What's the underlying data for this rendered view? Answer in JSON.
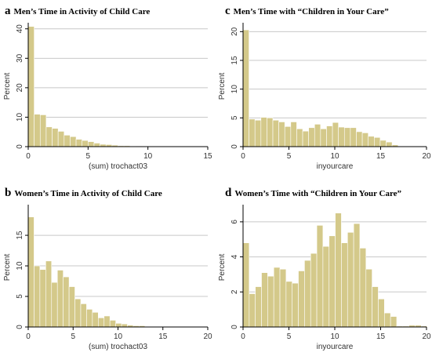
{
  "colors": {
    "bar_fill": "#d4c98a",
    "bar_stroke": "#ffffff",
    "grid": "#c8c8c8",
    "axis": "#000000",
    "text": "#333333"
  },
  "chart_data": [
    {
      "type": "bar",
      "panel_letter": "a",
      "title": "Men’s Time in Activity of Child Care",
      "xlabel": "(sum) trochact03",
      "ylabel": "Percent",
      "bin_width": 0.5,
      "xlim": [
        0,
        15
      ],
      "ylim": [
        0,
        41
      ],
      "xticks": [
        0,
        5,
        10,
        15
      ],
      "yticks": [
        0,
        10,
        20,
        30,
        40
      ],
      "grid": true,
      "bin_starts": [
        0,
        0.5,
        1,
        1.5,
        2,
        2.5,
        3,
        3.5,
        4,
        4.5,
        5,
        5.5,
        6,
        6.5,
        7,
        7.5,
        8,
        8.5,
        9,
        9.5,
        10,
        10.5,
        11,
        11.5
      ],
      "values": [
        40.8,
        11,
        10.8,
        6.7,
        6.2,
        5.2,
        3.9,
        3.4,
        2.5,
        2.1,
        1.7,
        1.2,
        0.8,
        0.7,
        0.5,
        0.3,
        0.3,
        0.2,
        0.15,
        0.1,
        0.1,
        0.1,
        0.1,
        0.1
      ]
    },
    {
      "type": "bar",
      "panel_letter": "c",
      "title": "Men’s Time with “Children in Your Care”",
      "xlabel": "inyourcare",
      "ylabel": "Percent",
      "bin_width": 0.65,
      "xlim": [
        0,
        20
      ],
      "ylim": [
        0,
        21
      ],
      "xticks": [
        0,
        5,
        10,
        15,
        20
      ],
      "yticks": [
        0,
        5,
        10,
        15,
        20
      ],
      "grid": true,
      "bin_starts": [
        0,
        0.65,
        1.3,
        1.95,
        2.6,
        3.25,
        3.9,
        4.55,
        5.2,
        5.85,
        6.5,
        7.15,
        7.8,
        8.45,
        9.1,
        9.75,
        10.4,
        11.05,
        11.7,
        12.35,
        13,
        13.65,
        14.3,
        14.95,
        15.6,
        16.25,
        16.9,
        17.55
      ],
      "values": [
        20.3,
        4.8,
        4.6,
        5.1,
        5,
        4.6,
        4.3,
        3.5,
        4.3,
        3.1,
        2.7,
        3.3,
        3.9,
        3.1,
        3.6,
        4.2,
        3.4,
        3.3,
        3.3,
        2.6,
        2.4,
        1.8,
        1.6,
        1.1,
        0.8,
        0.3,
        0.1,
        0.05
      ]
    },
    {
      "type": "bar",
      "panel_letter": "b",
      "title": "Women’s Time in Activity of Child Care",
      "xlabel": "(sum) trochact03",
      "ylabel": "Percent",
      "bin_width": 0.65,
      "xlim": [
        0,
        20
      ],
      "ylim": [
        0,
        19.5
      ],
      "xticks": [
        0,
        5,
        10,
        15,
        20
      ],
      "yticks": [
        0,
        5,
        10,
        15
      ],
      "grid": true,
      "bin_starts": [
        0,
        0.65,
        1.3,
        1.95,
        2.6,
        3.25,
        3.9,
        4.55,
        5.2,
        5.85,
        6.5,
        7.15,
        7.8,
        8.45,
        9.1,
        9.75,
        10.4,
        11.05,
        11.7,
        12.35,
        13,
        13.65
      ],
      "values": [
        18,
        10,
        9.4,
        10.8,
        7.3,
        9.3,
        8.2,
        6.6,
        4.6,
        3.8,
        2.9,
        2.4,
        1.5,
        1.8,
        1.1,
        0.6,
        0.5,
        0.3,
        0.2,
        0.2,
        0.1,
        0.05
      ]
    },
    {
      "type": "bar",
      "panel_letter": "d",
      "title": "Women’s Time with “Children in Your Care”",
      "xlabel": "inyourcare",
      "ylabel": "Percent",
      "bin_width": 0.67,
      "xlim": [
        0,
        20
      ],
      "ylim": [
        0,
        6.8
      ],
      "xticks": [
        0,
        5,
        10,
        15,
        20
      ],
      "yticks": [
        0,
        2,
        4,
        6
      ],
      "grid": true,
      "bin_starts": [
        0,
        0.67,
        1.34,
        2.01,
        2.68,
        3.35,
        4.02,
        4.69,
        5.36,
        6.03,
        6.7,
        7.37,
        8.04,
        8.71,
        9.38,
        10.05,
        10.72,
        11.39,
        12.06,
        12.73,
        13.4,
        14.07,
        14.74,
        15.41,
        16.08,
        16.75,
        17.42,
        18.09,
        18.76,
        19.43
      ],
      "values": [
        4.8,
        1.9,
        2.3,
        3.1,
        2.9,
        3.4,
        3.3,
        2.6,
        2.5,
        3.2,
        3.8,
        4.2,
        5.8,
        4.6,
        5.2,
        6.5,
        4.8,
        5.4,
        5.9,
        4.5,
        3.3,
        2.3,
        1.6,
        0.8,
        0.6,
        0.05,
        0.05,
        0.1,
        0.1,
        0.05
      ]
    }
  ]
}
